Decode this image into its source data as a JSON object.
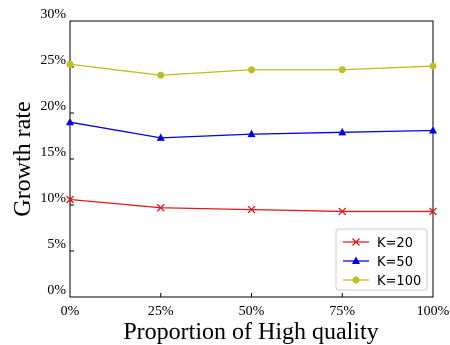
{
  "chart_data": {
    "type": "line",
    "xlabel": "Proportion of High quality",
    "ylabel": "Growth rate",
    "categories": [
      "0%",
      "25%",
      "50%",
      "75%",
      "100%"
    ],
    "x": [
      0,
      25,
      50,
      75,
      100
    ],
    "yticks": [
      "0%",
      "5%",
      "10%",
      "15%",
      "20%",
      "25%",
      "30%"
    ],
    "ytick_values": [
      0,
      5,
      10,
      15,
      20,
      25,
      30
    ],
    "xlim": [
      0,
      100
    ],
    "ylim": [
      0,
      30
    ],
    "grid": false,
    "legend_position": "lower-right",
    "series": [
      {
        "name": "K=20",
        "color": "#e31a1c",
        "marker": "x",
        "values": [
          10.6,
          9.7,
          9.5,
          9.3,
          9.3
        ]
      },
      {
        "name": "K=50",
        "color": "#0000ee",
        "marker": "triangle",
        "values": [
          19.0,
          17.3,
          17.7,
          17.9,
          18.1
        ]
      },
      {
        "name": "K=100",
        "color": "#bcbd22",
        "marker": "circle",
        "values": [
          25.3,
          24.1,
          24.7,
          24.7,
          25.1
        ]
      }
    ]
  }
}
